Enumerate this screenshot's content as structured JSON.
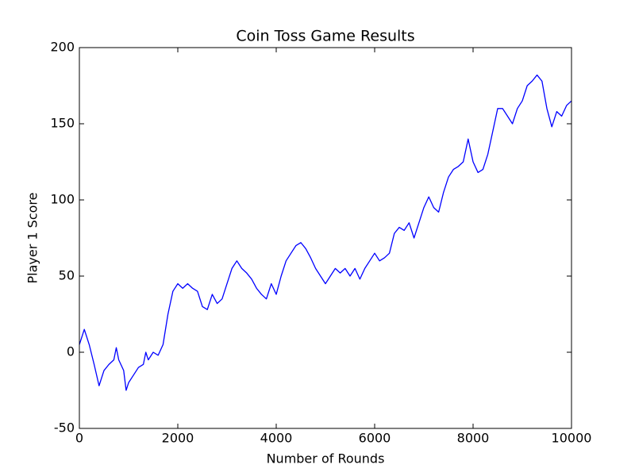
{
  "chart_data": {
    "type": "line",
    "title": "Coin Toss Game Results",
    "x_label": "Number of Rounds",
    "y_label": "Player 1 Score",
    "x": [
      0,
      100,
      200,
      300,
      400,
      500,
      600,
      700,
      750,
      800,
      900,
      950,
      1000,
      1100,
      1200,
      1300,
      1350,
      1400,
      1500,
      1600,
      1700,
      1800,
      1900,
      2000,
      2100,
      2200,
      2300,
      2400,
      2500,
      2600,
      2700,
      2800,
      2900,
      3000,
      3100,
      3200,
      3300,
      3400,
      3500,
      3600,
      3700,
      3800,
      3900,
      4000,
      4100,
      4200,
      4300,
      4400,
      4500,
      4600,
      4700,
      4800,
      4900,
      5000,
      5100,
      5200,
      5300,
      5400,
      5500,
      5600,
      5700,
      5800,
      5900,
      6000,
      6100,
      6200,
      6300,
      6400,
      6500,
      6600,
      6700,
      6800,
      6900,
      7000,
      7100,
      7200,
      7300,
      7400,
      7500,
      7600,
      7700,
      7800,
      7900,
      8000,
      8100,
      8200,
      8300,
      8400,
      8500,
      8600,
      8700,
      8800,
      8900,
      9000,
      9100,
      9200,
      9300,
      9400,
      9500,
      9600,
      9700,
      9800,
      9900,
      10000
    ],
    "series": [
      {
        "name": "Player 1",
        "color": "#0000ff",
        "values": [
          5,
          15,
          5,
          -8,
          -22,
          -12,
          -8,
          -5,
          3,
          -5,
          -12,
          -25,
          -20,
          -15,
          -10,
          -8,
          0,
          -5,
          0,
          -2,
          5,
          25,
          40,
          45,
          42,
          45,
          42,
          40,
          30,
          28,
          38,
          32,
          35,
          45,
          55,
          60,
          55,
          52,
          48,
          42,
          38,
          35,
          45,
          38,
          50,
          60,
          65,
          70,
          72,
          68,
          62,
          55,
          50,
          45,
          50,
          55,
          52,
          55,
          50,
          55,
          48,
          55,
          60,
          65,
          60,
          62,
          65,
          78,
          82,
          80,
          85,
          75,
          85,
          95,
          102,
          95,
          92,
          105,
          115,
          120,
          122,
          125,
          140,
          125,
          118,
          120,
          130,
          145,
          160,
          160,
          155,
          150,
          160,
          165,
          175,
          178,
          182,
          178,
          160,
          148,
          158,
          155,
          162,
          165
        ]
      }
    ],
    "xlim": [
      0,
      10000
    ],
    "ylim": [
      -50,
      200
    ],
    "xticks": [
      0,
      2000,
      4000,
      6000,
      8000,
      10000
    ],
    "yticks": [
      -50,
      0,
      50,
      100,
      150,
      200
    ],
    "grid": false
  }
}
